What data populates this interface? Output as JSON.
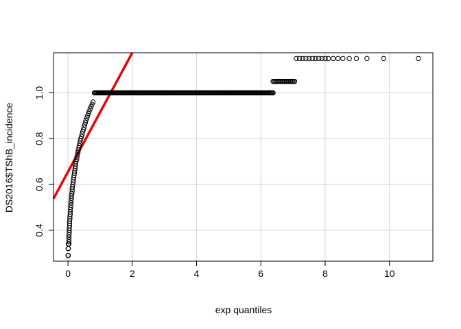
{
  "chart_data": {
    "type": "scatter",
    "title": "",
    "xlabel": "exp quantiles",
    "ylabel": "DS2016$TShB_incidence",
    "xlim": [
      -0.45,
      11.35
    ],
    "ylim": [
      0.265,
      1.175
    ],
    "xticks": [
      0,
      2,
      4,
      6,
      8,
      10
    ],
    "yticks": [
      0.4,
      0.6,
      0.8,
      1.0
    ],
    "xtick_labels": [
      "0",
      "2",
      "4",
      "6",
      "8",
      "10"
    ],
    "ytick_labels": [
      "0.4",
      "0.6",
      "0.8",
      "1.0"
    ],
    "grid": true,
    "grid_color": "#d3d3d3",
    "point_color": "#000000",
    "line_color": "#ee0000",
    "fit_line": {
      "intercept": 0.655,
      "slope": 0.26
    },
    "segments": [
      {
        "y": 0.29,
        "x_from": 0.0,
        "x_to": 0.01,
        "n": 2
      },
      {
        "y": 0.32,
        "x_from": 0.005,
        "x_to": 0.012,
        "n": 2
      },
      {
        "y": 0.34,
        "x_from": 0.012,
        "x_to": 0.03,
        "n": 4
      },
      {
        "y": 1.0,
        "x_from": 0.82,
        "x_to": 6.38,
        "n": 220
      },
      {
        "y": 1.05,
        "x_from": 6.38,
        "x_to": 7.05,
        "n": 22
      }
    ],
    "curve": [
      [
        0.03,
        0.35
      ],
      [
        0.03,
        0.36
      ],
      [
        0.03,
        0.37
      ],
      [
        0.03,
        0.38
      ],
      [
        0.04,
        0.39
      ],
      [
        0.04,
        0.4
      ],
      [
        0.04,
        0.41
      ],
      [
        0.05,
        0.42
      ],
      [
        0.05,
        0.43
      ],
      [
        0.05,
        0.44
      ],
      [
        0.06,
        0.45
      ],
      [
        0.06,
        0.46
      ],
      [
        0.07,
        0.47
      ],
      [
        0.07,
        0.48
      ],
      [
        0.08,
        0.49
      ],
      [
        0.08,
        0.5
      ],
      [
        0.09,
        0.51
      ],
      [
        0.09,
        0.52
      ],
      [
        0.1,
        0.53
      ],
      [
        0.11,
        0.54
      ],
      [
        0.11,
        0.55
      ],
      [
        0.12,
        0.56
      ],
      [
        0.13,
        0.57
      ],
      [
        0.13,
        0.58
      ],
      [
        0.14,
        0.59
      ],
      [
        0.15,
        0.6
      ],
      [
        0.16,
        0.61
      ],
      [
        0.17,
        0.62
      ],
      [
        0.18,
        0.63
      ],
      [
        0.19,
        0.64
      ],
      [
        0.2,
        0.65
      ],
      [
        0.21,
        0.66
      ],
      [
        0.22,
        0.67
      ],
      [
        0.23,
        0.68
      ],
      [
        0.24,
        0.69
      ],
      [
        0.25,
        0.7
      ],
      [
        0.27,
        0.71
      ],
      [
        0.28,
        0.72
      ],
      [
        0.29,
        0.73
      ],
      [
        0.31,
        0.74
      ],
      [
        0.32,
        0.75
      ],
      [
        0.34,
        0.76
      ],
      [
        0.35,
        0.77
      ],
      [
        0.37,
        0.78
      ],
      [
        0.38,
        0.79
      ],
      [
        0.4,
        0.8
      ],
      [
        0.42,
        0.81
      ],
      [
        0.44,
        0.82
      ],
      [
        0.46,
        0.83
      ],
      [
        0.48,
        0.84
      ],
      [
        0.5,
        0.85
      ],
      [
        0.52,
        0.86
      ],
      [
        0.54,
        0.87
      ],
      [
        0.56,
        0.88
      ],
      [
        0.59,
        0.89
      ],
      [
        0.61,
        0.9
      ],
      [
        0.64,
        0.91
      ],
      [
        0.66,
        0.92
      ],
      [
        0.69,
        0.93
      ],
      [
        0.72,
        0.94
      ],
      [
        0.75,
        0.95
      ],
      [
        0.78,
        0.96
      ]
    ],
    "top_points": {
      "y": 1.15,
      "x": [
        7.1,
        7.2,
        7.3,
        7.4,
        7.5,
        7.6,
        7.7,
        7.8,
        7.9,
        8.0,
        8.1,
        8.25,
        8.4,
        8.55,
        8.75,
        8.97,
        9.3,
        9.82,
        10.9
      ]
    }
  }
}
